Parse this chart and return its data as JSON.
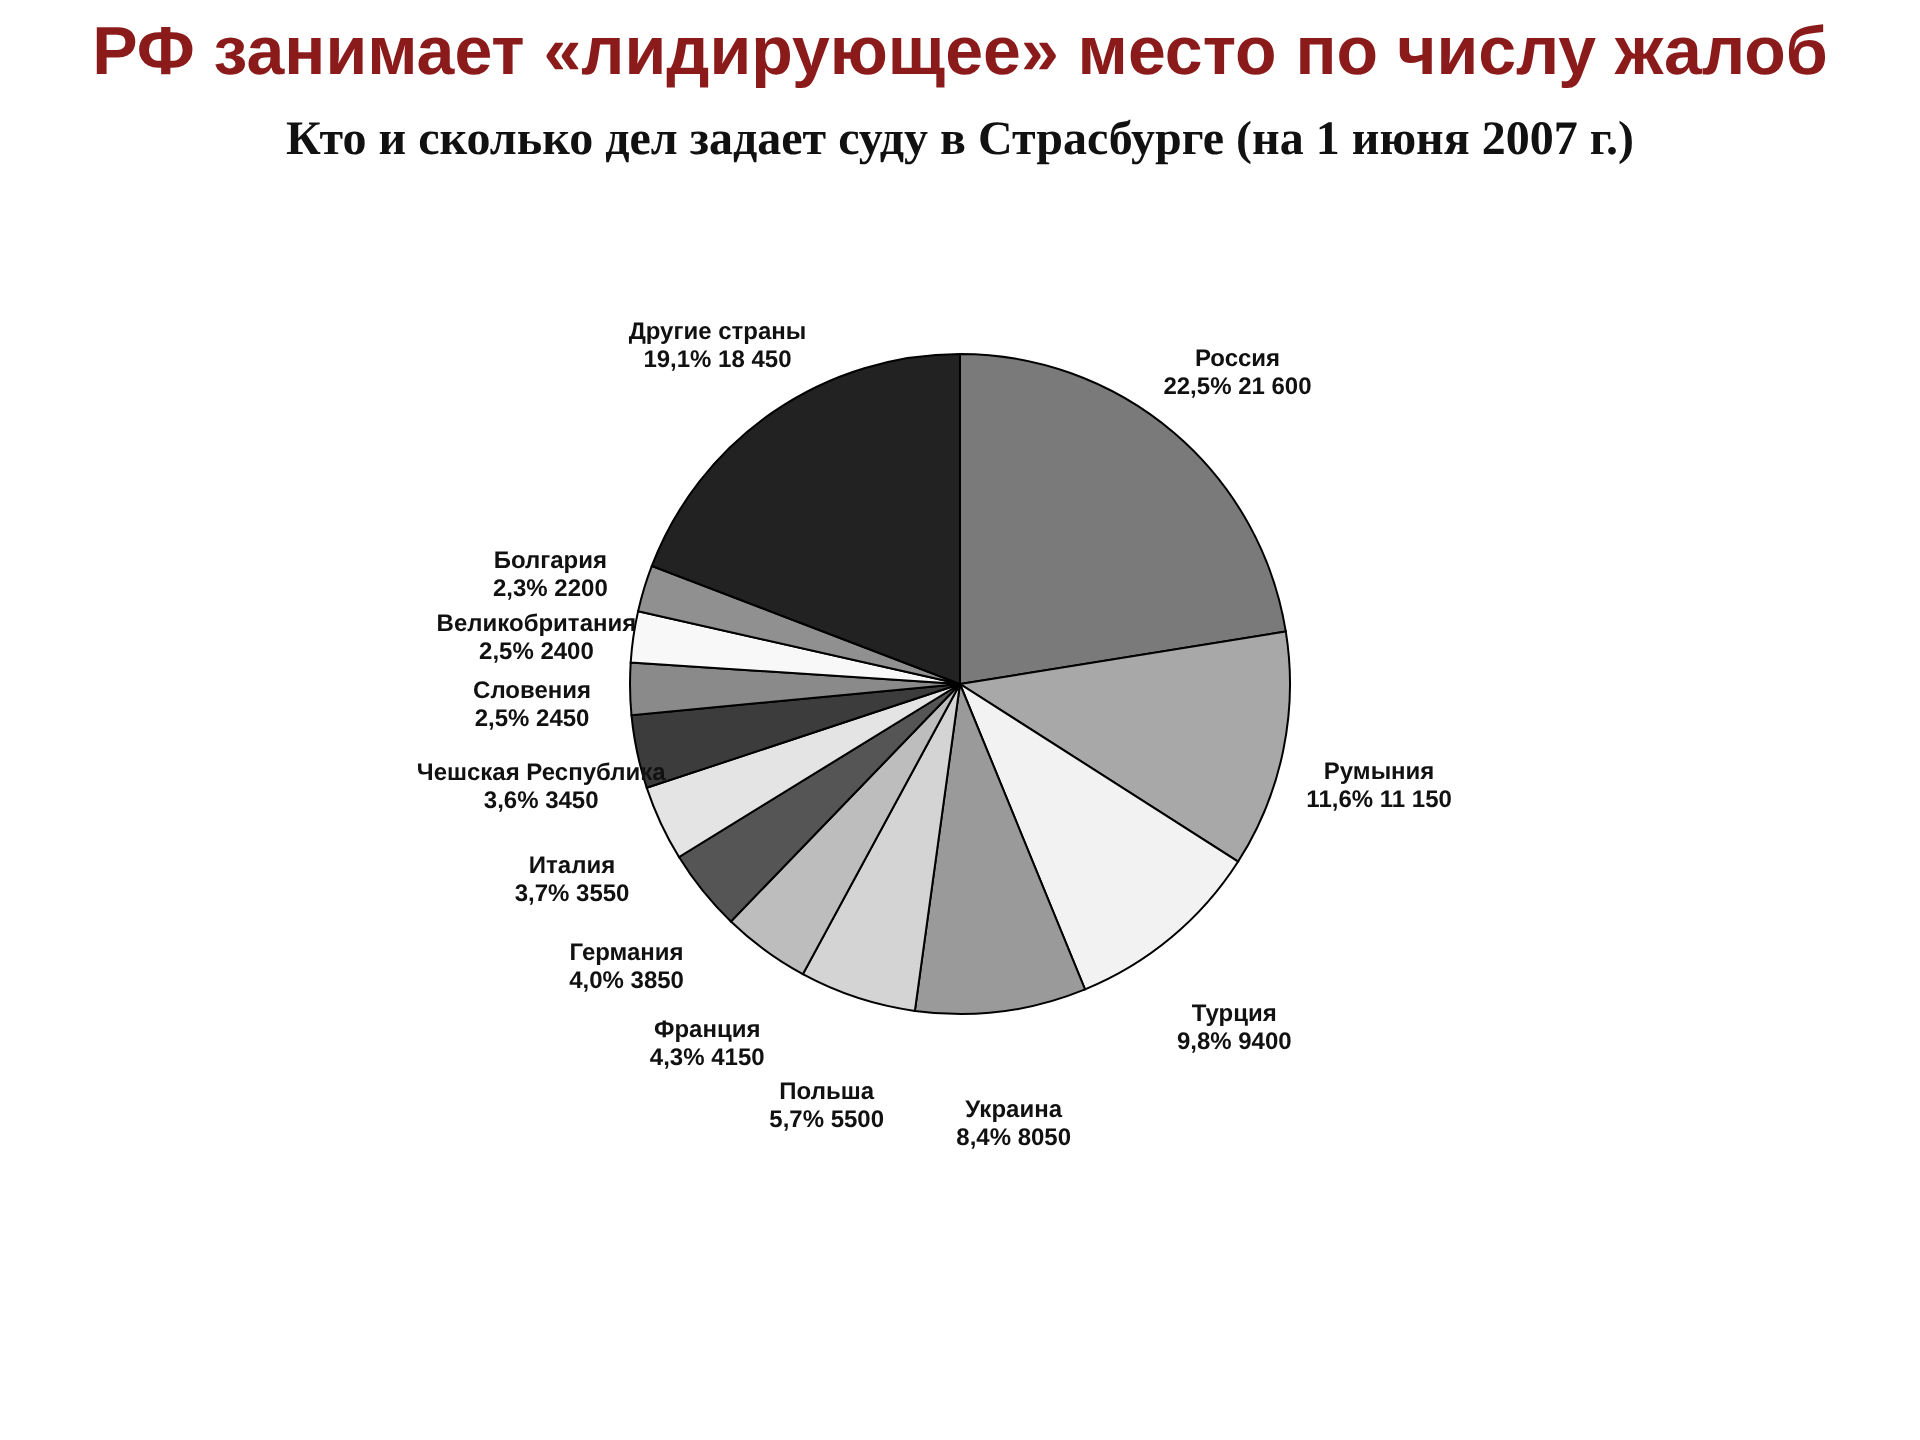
{
  "chart_data": {
    "type": "pie",
    "title": "РФ занимает «лидирующее» место по числу жалоб",
    "subtitle": "Кто и сколько дел задает суду в Страсбурге (на 1 июня 2007 г.)",
    "categories": [
      "Россия",
      "Румыния",
      "Турция",
      "Украина",
      "Польша",
      "Франция",
      "Германия",
      "Италия",
      "Чешская Республика",
      "Словения",
      "Великобритания",
      "Болгария",
      "Другие страны"
    ],
    "values": [
      21600,
      11150,
      9400,
      8050,
      5500,
      4150,
      3850,
      3550,
      3450,
      2450,
      2400,
      2200,
      18450
    ],
    "value_labels": [
      "22,5% 21 600",
      "11,6% 11 150",
      "9,8% 9400",
      "8,4% 8050",
      "5,7% 5500",
      "4,3% 4150",
      "4,0% 3850",
      "3,7% 3550",
      "3,6% 3450",
      "2,5% 2450",
      "2,5% 2400",
      "2,3% 2200",
      "19,1% 18 450"
    ],
    "colors": [
      "#7a7a7a",
      "#a8a8a8",
      "#f2f2f2",
      "#9a9a9a",
      "#d4d4d4",
      "#bdbdbd",
      "#555555",
      "#e4e4e4",
      "#3c3c3c",
      "#8a8a8a",
      "#f8f8f8",
      "#909090",
      "#222222"
    ]
  }
}
